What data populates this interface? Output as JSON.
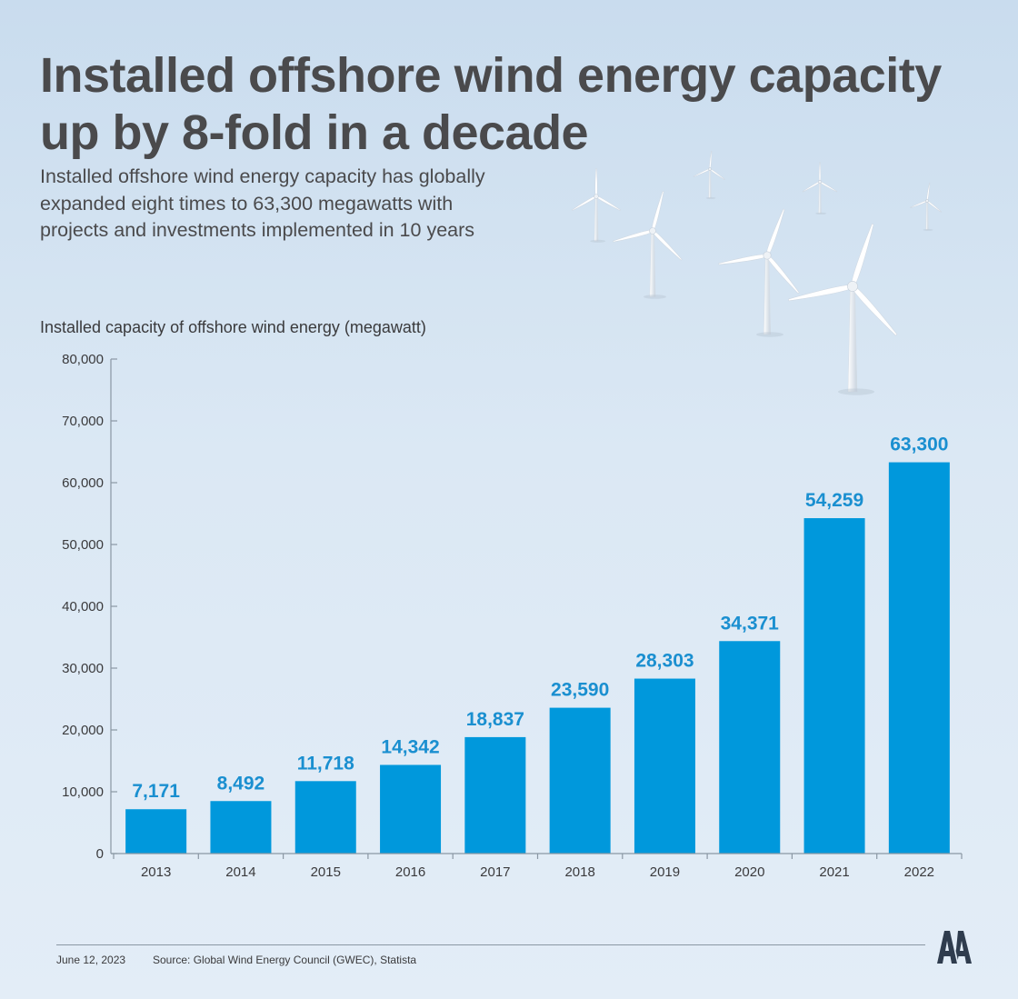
{
  "header": {
    "title": "Installed offshore wind energy capacity up by 8-fold in a decade",
    "subtitle": "Installed offshore wind energy capacity has globally expanded eight times to 63,300 megawatts with projects and investments implemented in 10 years"
  },
  "chart_data": {
    "type": "bar",
    "ylabel": "Installed capacity of offshore wind energy (megawatt)",
    "xlabel": "",
    "categories": [
      "2013",
      "2014",
      "2015",
      "2016",
      "2017",
      "2018",
      "2019",
      "2020",
      "2021",
      "2022"
    ],
    "values": [
      7171,
      8492,
      11718,
      14342,
      18837,
      23590,
      28303,
      34371,
      54259,
      63300
    ],
    "value_labels": [
      "7,171",
      "8,492",
      "11,718",
      "14,342",
      "18,837",
      "23,590",
      "28,303",
      "34,371",
      "54,259",
      "63,300"
    ],
    "ylim": [
      0,
      80000
    ],
    "yticks": [
      0,
      10000,
      20000,
      30000,
      40000,
      50000,
      60000,
      70000,
      80000
    ],
    "ytick_labels": [
      "0",
      "10,000",
      "20,000",
      "30,000",
      "40,000",
      "50,000",
      "60,000",
      "70,000",
      "80,000"
    ],
    "grid": false,
    "colors": {
      "bar": "#0098dc",
      "value_label": "#1a8fd0",
      "axis": "#8a97a4",
      "tick_label": "#3a3a3c"
    }
  },
  "footer": {
    "date": "June 12, 2023",
    "source": "Source: Global Wind Energy Council (GWEC), Statista"
  },
  "logo": {
    "icon": "aa-logo-icon",
    "color": "#2f3c4e"
  },
  "decoration": {
    "icon": "wind-turbine-icon"
  }
}
